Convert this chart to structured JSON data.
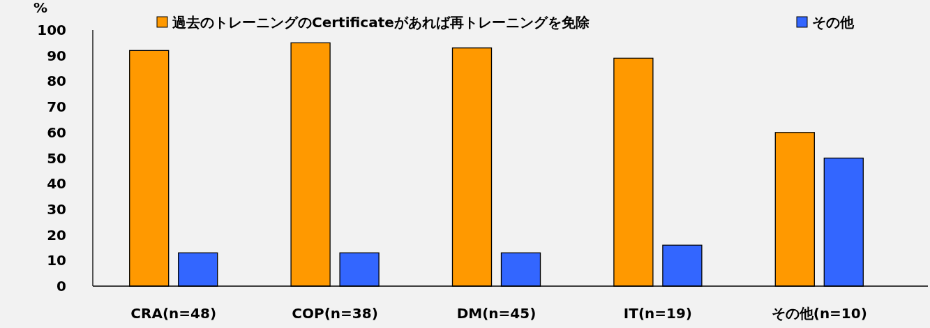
{
  "chart_data": {
    "type": "bar",
    "ylabel": "%",
    "categories": [
      "CRA(n=48)",
      "COP(n=38)",
      "DM(n=45)",
      "IT(n=19)",
      "その他(n=10)"
    ],
    "series": [
      {
        "name": "過去のトレーニングのCertificateがあれば再トレーニングを免除",
        "color": "#ff9900",
        "values": [
          92,
          95,
          93,
          89,
          60
        ]
      },
      {
        "name": "その他",
        "color": "#3366ff",
        "values": [
          13,
          13,
          13,
          16,
          50
        ]
      }
    ],
    "ylim": [
      0,
      100
    ],
    "yticks": [
      0,
      10,
      20,
      30,
      40,
      50,
      60,
      70,
      80,
      90,
      100
    ],
    "grid": false,
    "legend": "top"
  }
}
